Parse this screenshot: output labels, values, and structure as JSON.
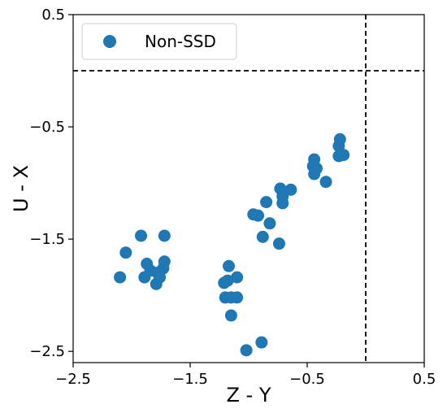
{
  "chart_data": {
    "type": "scatter",
    "xlabel": "Z - Y",
    "ylabel": "U - X",
    "xlim": [
      -2.5,
      0.5
    ],
    "ylim": [
      -2.6,
      0.5
    ],
    "xticks": [
      -2.5,
      -1.5,
      -0.5,
      0.5
    ],
    "xtick_labels": [
      "−2.5",
      "−1.5",
      "−0.5",
      "0.5"
    ],
    "yticks": [
      0.5,
      -0.5,
      -1.5,
      -2.5
    ],
    "ytick_labels": [
      "0.5",
      "−0.5",
      "−1.5",
      "−2.5"
    ],
    "grid": false,
    "legend": {
      "position": "top-left",
      "entries": [
        "Non-SSD"
      ]
    },
    "reference_lines": {
      "vertical_x": 0.0,
      "horizontal_y": 0.0,
      "style": "dashed",
      "color": "#000000"
    },
    "series": [
      {
        "name": "Non-SSD",
        "color": "#1f77b4",
        "points": [
          [
            -0.22,
            -0.61
          ],
          [
            -0.23,
            -0.67
          ],
          [
            -0.19,
            -0.75
          ],
          [
            -0.23,
            -0.76
          ],
          [
            -0.44,
            -0.79
          ],
          [
            -0.45,
            -0.85
          ],
          [
            -0.42,
            -0.87
          ],
          [
            -0.44,
            -0.92
          ],
          [
            -0.34,
            -0.99
          ],
          [
            -0.64,
            -1.06
          ],
          [
            -0.73,
            -1.05
          ],
          [
            -0.71,
            -1.12
          ],
          [
            -0.71,
            -1.18
          ],
          [
            -0.85,
            -1.17
          ],
          [
            -0.96,
            -1.28
          ],
          [
            -0.92,
            -1.29
          ],
          [
            -0.82,
            -1.36
          ],
          [
            -0.88,
            -1.48
          ],
          [
            -0.74,
            -1.54
          ],
          [
            -2.1,
            -1.84
          ],
          [
            -2.05,
            -1.62
          ],
          [
            -1.92,
            -1.47
          ],
          [
            -1.72,
            -1.47
          ],
          [
            -1.87,
            -1.72
          ],
          [
            -1.72,
            -1.7
          ],
          [
            -1.73,
            -1.76
          ],
          [
            -1.84,
            -1.78
          ],
          [
            -1.78,
            -1.8
          ],
          [
            -1.89,
            -1.84
          ],
          [
            -1.76,
            -1.84
          ],
          [
            -1.79,
            -1.9
          ],
          [
            -1.17,
            -1.74
          ],
          [
            -1.1,
            -1.84
          ],
          [
            -1.21,
            -1.89
          ],
          [
            -1.18,
            -1.87
          ],
          [
            -1.2,
            -2.02
          ],
          [
            -1.15,
            -2.02
          ],
          [
            -1.1,
            -2.02
          ],
          [
            -1.15,
            -2.18
          ],
          [
            -1.02,
            -2.49
          ],
          [
            -0.89,
            -2.42
          ]
        ]
      }
    ]
  }
}
